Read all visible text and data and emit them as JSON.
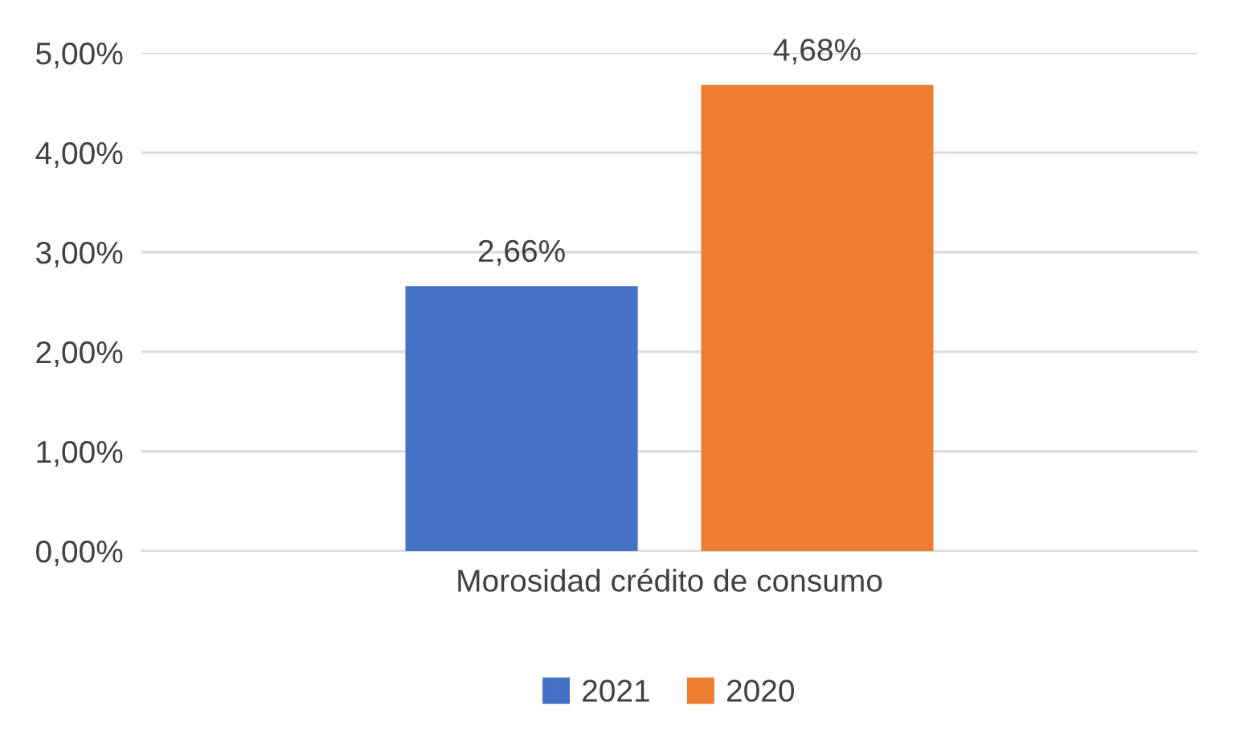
{
  "chart_data": {
    "type": "bar",
    "categories": [
      "Morosidad crédito de consumo"
    ],
    "series": [
      {
        "name": "2021",
        "color": "#4472c4",
        "values": [
          2.66
        ],
        "value_labels": [
          "2,66%"
        ]
      },
      {
        "name": "2020",
        "color": "#ed7d31",
        "values": [
          4.68
        ],
        "value_labels": [
          "4,68%"
        ]
      }
    ],
    "ylim": [
      0,
      5
    ],
    "yticks": [
      {
        "value": 0,
        "label": "0,00%"
      },
      {
        "value": 1,
        "label": "1,00%"
      },
      {
        "value": 2,
        "label": "2,00%"
      },
      {
        "value": 3,
        "label": "3,00%"
      },
      {
        "value": 4,
        "label": "4,00%"
      },
      {
        "value": 5,
        "label": "5,00%"
      }
    ],
    "grid": "y",
    "legend": "bottom"
  }
}
